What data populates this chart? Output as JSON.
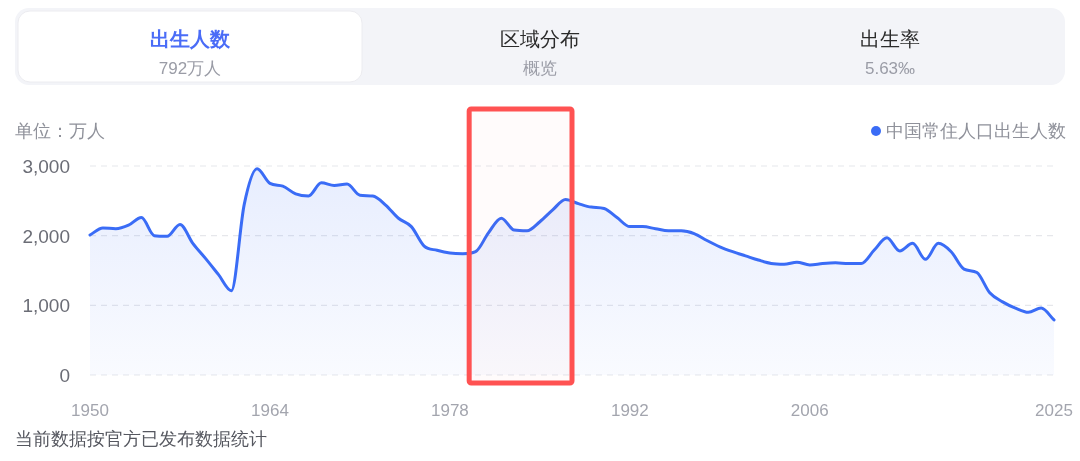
{
  "chart_data": {
    "type": "area",
    "annotations": [
      "出生人数",
      "792万人",
      "区域分布",
      "概览",
      "出生率",
      "5.63‰",
      "当前数据按官方已发布数据统计"
    ],
    "ylabel": "单位：万人",
    "x": [
      1950,
      1951,
      1952,
      1953,
      1954,
      1955,
      1956,
      1957,
      1958,
      1959,
      1960,
      1961,
      1962,
      1963,
      1964,
      1965,
      1966,
      1967,
      1968,
      1969,
      1970,
      1971,
      1972,
      1973,
      1974,
      1975,
      1976,
      1977,
      1978,
      1979,
      1980,
      1981,
      1982,
      1983,
      1984,
      1985,
      1986,
      1987,
      1988,
      1989,
      1990,
      1991,
      1992,
      1993,
      1994,
      1995,
      1996,
      1997,
      1998,
      1999,
      2000,
      2001,
      2002,
      2003,
      2004,
      2005,
      2006,
      2007,
      2008,
      2009,
      2010,
      2011,
      2012,
      2013,
      2014,
      2015,
      2016,
      2017,
      2018,
      2019,
      2020,
      2021,
      2022,
      2023,
      2024,
      2025
    ],
    "series": [
      {
        "name": "中国常住人口出生人数",
        "color": "#3a6cf6",
        "values": [
          2010,
          2110,
          2100,
          2150,
          2260,
          2000,
          1990,
          2160,
          1890,
          1670,
          1440,
          1210,
          2450,
          2960,
          2750,
          2710,
          2600,
          2570,
          2760,
          2720,
          2740,
          2580,
          2570,
          2440,
          2250,
          2130,
          1850,
          1790,
          1750,
          1740,
          1770,
          2040,
          2250,
          2080,
          2070,
          2200,
          2370,
          2520,
          2460,
          2410,
          2390,
          2260,
          2130,
          2130,
          2100,
          2070,
          2070,
          2030,
          1930,
          1840,
          1770,
          1710,
          1650,
          1600,
          1590,
          1620,
          1580,
          1600,
          1610,
          1600,
          1600,
          1790,
          1970,
          1780,
          1890,
          1660,
          1890,
          1770,
          1520,
          1470,
          1180,
          1050,
          960,
          900,
          960,
          790
        ]
      }
    ],
    "xlim": [
      1950,
      2025
    ],
    "xticks": [
      1950,
      1964,
      1978,
      1992,
      2006,
      2025
    ],
    "ylim": [
      0,
      3000
    ],
    "yticks": [
      0,
      {
        "value": 1000,
        "label": "1,000"
      },
      {
        "value": 2000,
        "label": "2,000"
      },
      {
        "value": 3000,
        "label": "3,000"
      }
    ],
    "grid": "y",
    "legend": "top right",
    "bands": [
      {
        "axis": "x",
        "from": 1979.5,
        "to": 1987.5,
        "color": "#ff5252"
      }
    ]
  }
}
